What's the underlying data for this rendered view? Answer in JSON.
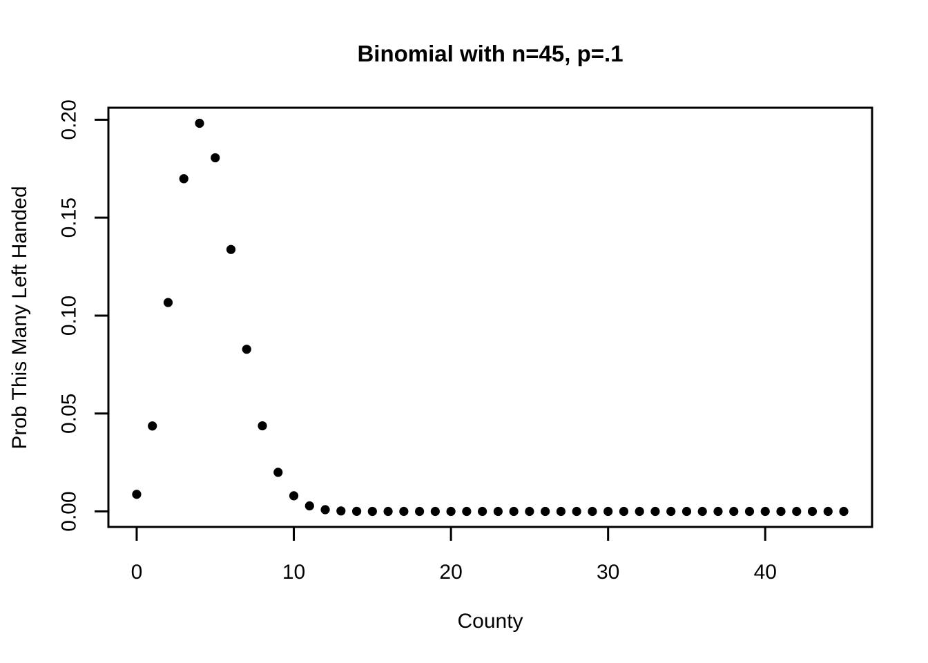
{
  "chart_data": {
    "type": "scatter",
    "title": "Binomial with n=45, p=.1",
    "xlabel": "County",
    "ylabel": "Prob This Many Left Handed",
    "x": [
      0,
      1,
      2,
      3,
      4,
      5,
      6,
      7,
      8,
      9,
      10,
      11,
      12,
      13,
      14,
      15,
      16,
      17,
      18,
      19,
      20,
      21,
      22,
      23,
      24,
      25,
      26,
      27,
      28,
      29,
      30,
      31,
      32,
      33,
      34,
      35,
      36,
      37,
      38,
      39,
      40,
      41,
      42,
      43,
      44,
      45
    ],
    "values": [
      0.0087279,
      0.0436397,
      0.1066748,
      0.1698894,
      0.1982043,
      0.1805906,
      0.1337708,
      0.0828105,
      0.0437055,
      0.0199642,
      0.0079857,
      0.0028232,
      0.0008888,
      0.0002507,
      6.37e-05,
      1.46e-05,
      3.1e-06,
      6e-07,
      1e-07,
      0,
      0,
      0,
      0,
      0,
      0,
      0,
      0,
      0,
      0,
      0,
      0,
      0,
      0,
      0,
      0,
      0,
      0,
      0,
      0,
      0,
      0,
      0,
      0,
      0,
      0,
      0
    ],
    "xlim": [
      0,
      45
    ],
    "ylim": [
      0,
      0.1982043
    ],
    "axis_padding_fraction": 0.04,
    "x_ticks": [
      0,
      10,
      20,
      30,
      40
    ],
    "x_tick_labels": [
      "0",
      "10",
      "20",
      "30",
      "40"
    ],
    "y_ticks": [
      0,
      0.05,
      0.1,
      0.15,
      0.2
    ],
    "y_tick_labels": [
      "0.00",
      "0.05",
      "0.10",
      "0.15",
      "0.20"
    ],
    "point_color": "#000000",
    "axis_color": "#000000",
    "background_color": "#FFFFFF",
    "grid": false,
    "legend": "none"
  }
}
